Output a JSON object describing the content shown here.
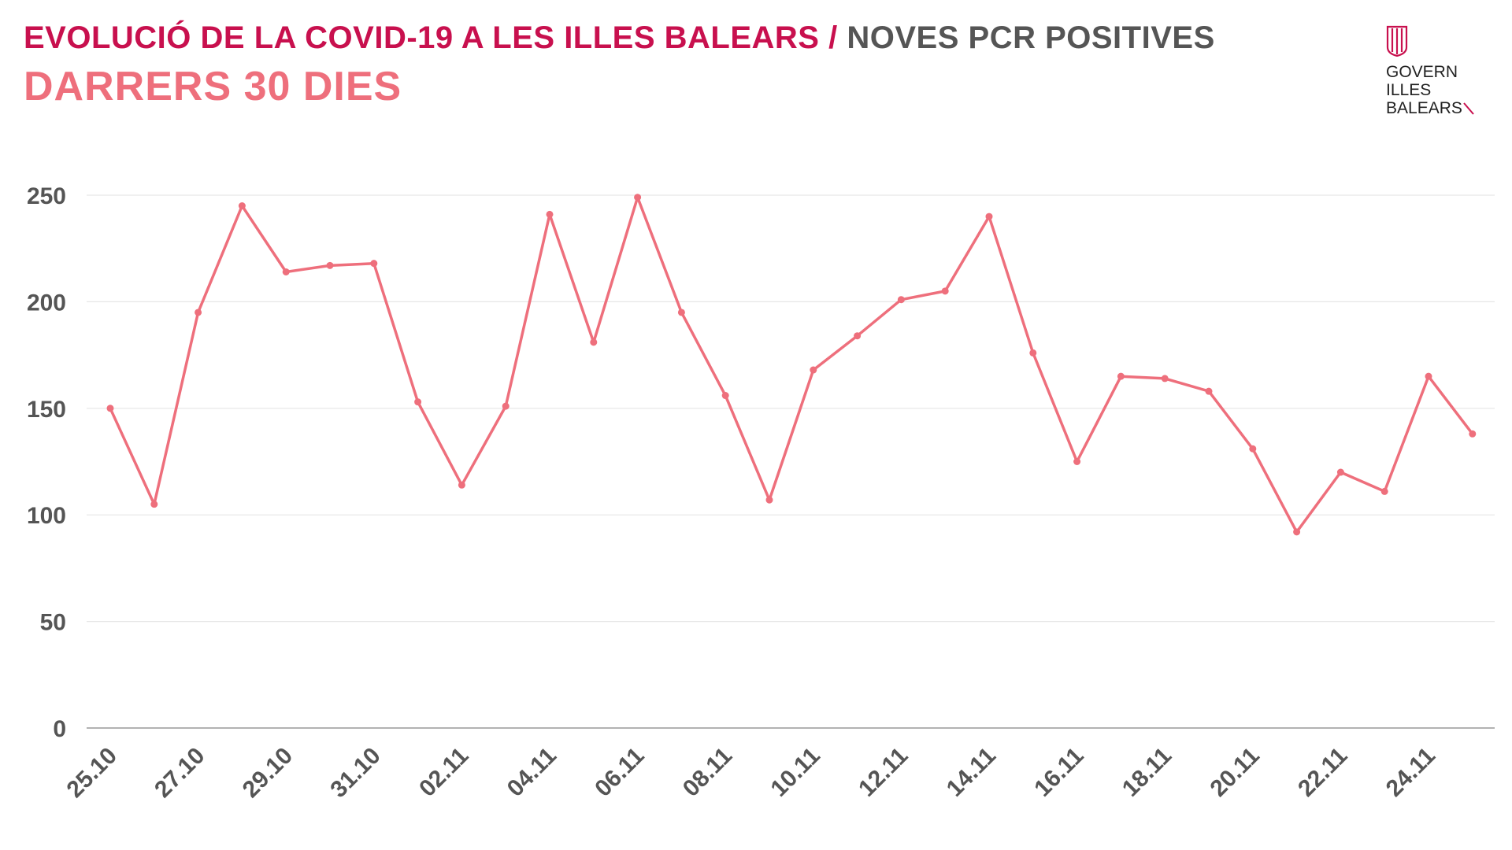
{
  "header": {
    "title_main": "EVOLUCIÓ DE LA COVID-19 A LES ILLES BALEARS",
    "title_separator": "/",
    "title_sub": "NOVES PCR POSITIVES",
    "subtitle": "DARRERS 30 DIES"
  },
  "logo": {
    "line1": "GOVERN",
    "line2": "ILLES",
    "line3": "BALEARS",
    "icon": "coat-of-arms-stripes-icon"
  },
  "colors": {
    "title": "#c8104e",
    "subtitle": "#ee6f7c",
    "line": "#ee6f7c",
    "axis_text": "#555555",
    "grid": "#e6e6e6"
  },
  "chart_data": {
    "type": "line",
    "title": "EVOLUCIÓ DE LA COVID-19 A LES ILLES BALEARS / NOVES PCR POSITIVES",
    "subtitle": "DARRERS 30 DIES",
    "xlabel": "",
    "ylabel": "",
    "ylim": [
      0,
      250
    ],
    "yticks": [
      0,
      50,
      100,
      150,
      200,
      250
    ],
    "grid": true,
    "legend": "none",
    "x": [
      "25.10",
      "26.10",
      "27.10",
      "28.10",
      "29.10",
      "30.10",
      "31.10",
      "01.11",
      "02.11",
      "03.11",
      "04.11",
      "05.11",
      "06.11",
      "07.11",
      "08.11",
      "09.11",
      "10.11",
      "11.11",
      "12.11",
      "13.11",
      "14.11",
      "15.11",
      "16.11",
      "17.11",
      "18.11",
      "19.11",
      "20.11",
      "21.11",
      "22.11",
      "23.11",
      "24.11",
      "25.11"
    ],
    "x_tick_labels": [
      "25.10",
      "27.10",
      "29.10",
      "31.10",
      "02.11",
      "04.11",
      "06.11",
      "08.11",
      "10.11",
      "12.11",
      "14.11",
      "16.11",
      "18.11",
      "20.11",
      "22.11",
      "24.11"
    ],
    "series": [
      {
        "values": [
          150,
          105,
          195,
          245,
          214,
          217,
          218,
          153,
          114,
          151,
          241,
          181,
          249,
          195,
          156,
          107,
          168,
          184,
          201,
          205,
          240,
          176,
          125,
          165,
          164,
          158,
          131,
          92,
          120,
          111,
          165,
          138
        ]
      }
    ]
  }
}
